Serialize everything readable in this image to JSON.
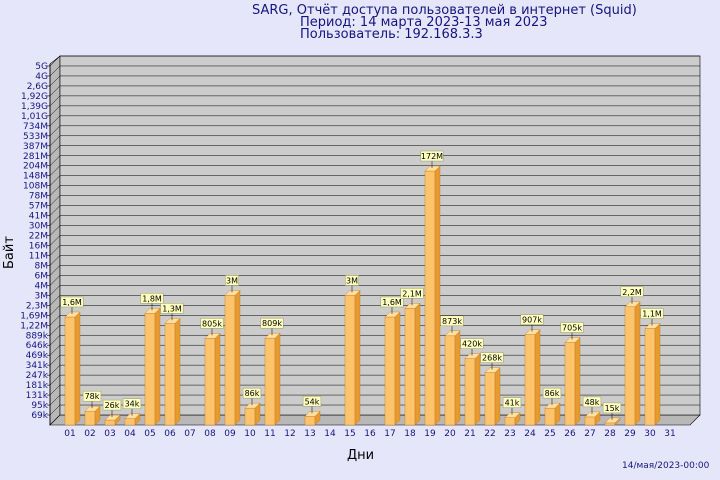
{
  "header": {
    "line1": "SARG, Отчёт доступа пользователей в интернет (Squid)",
    "line2": "Период: 14 марта 2023-13 мая 2023",
    "line3": "Пользователь: 192.168.3.3"
  },
  "footer": "14/мая/2023-00:00",
  "colors": {
    "background": "#e6e6fa",
    "plot": "#cccccc",
    "bar_front": "#ffc36b",
    "bar_side": "#e59a32",
    "bar_top": "#ffe0a0",
    "text": "#151580",
    "label_bg": "#ffffc0"
  },
  "chart_data": {
    "type": "bar",
    "xlabel": "Дни",
    "ylabel": "Байт",
    "grid": true,
    "scale": "log",
    "yticks": [
      "69k",
      "95k",
      "131k",
      "181k",
      "247k",
      "341k",
      "469k",
      "646k",
      "889k",
      "1,22M",
      "1,69M",
      "2,3M",
      "3M",
      "4M",
      "6M",
      "8M",
      "11M",
      "16M",
      "22M",
      "30M",
      "41M",
      "57M",
      "78M",
      "108M",
      "148M",
      "204M",
      "281M",
      "387M",
      "533M",
      "734M",
      "1,01G",
      "1,39G",
      "1,92G",
      "2,6G",
      "4G",
      "5G"
    ],
    "categories": [
      "01",
      "02",
      "03",
      "04",
      "05",
      "06",
      "07",
      "08",
      "09",
      "10",
      "11",
      "12",
      "13",
      "14",
      "15",
      "16",
      "17",
      "18",
      "19",
      "20",
      "21",
      "22",
      "23",
      "24",
      "25",
      "26",
      "27",
      "28",
      "29",
      "30",
      "31"
    ],
    "values": [
      1600000,
      78000,
      26000,
      34000,
      1800000,
      1300000,
      null,
      805000,
      3000000,
      86000,
      809000,
      null,
      54000,
      null,
      3000000,
      null,
      1600000,
      2100000,
      172000000,
      873000,
      420000,
      268000,
      41000,
      907000,
      86000,
      705000,
      48000,
      15000,
      2200000,
      1100000,
      null
    ],
    "data_labels": [
      "1,6M",
      "78k",
      "26k",
      "34k",
      "1,8M",
      "1,3M",
      "",
      "805k",
      "3M",
      "86k",
      "809k",
      "",
      "54k",
      "",
      "3M",
      "",
      "1,6M",
      "2,1M",
      "172M",
      "873k",
      "420k",
      "268k",
      "41k",
      "907k",
      "86k",
      "705k",
      "48k",
      "15k",
      "2,2M",
      "1,1M",
      ""
    ]
  }
}
